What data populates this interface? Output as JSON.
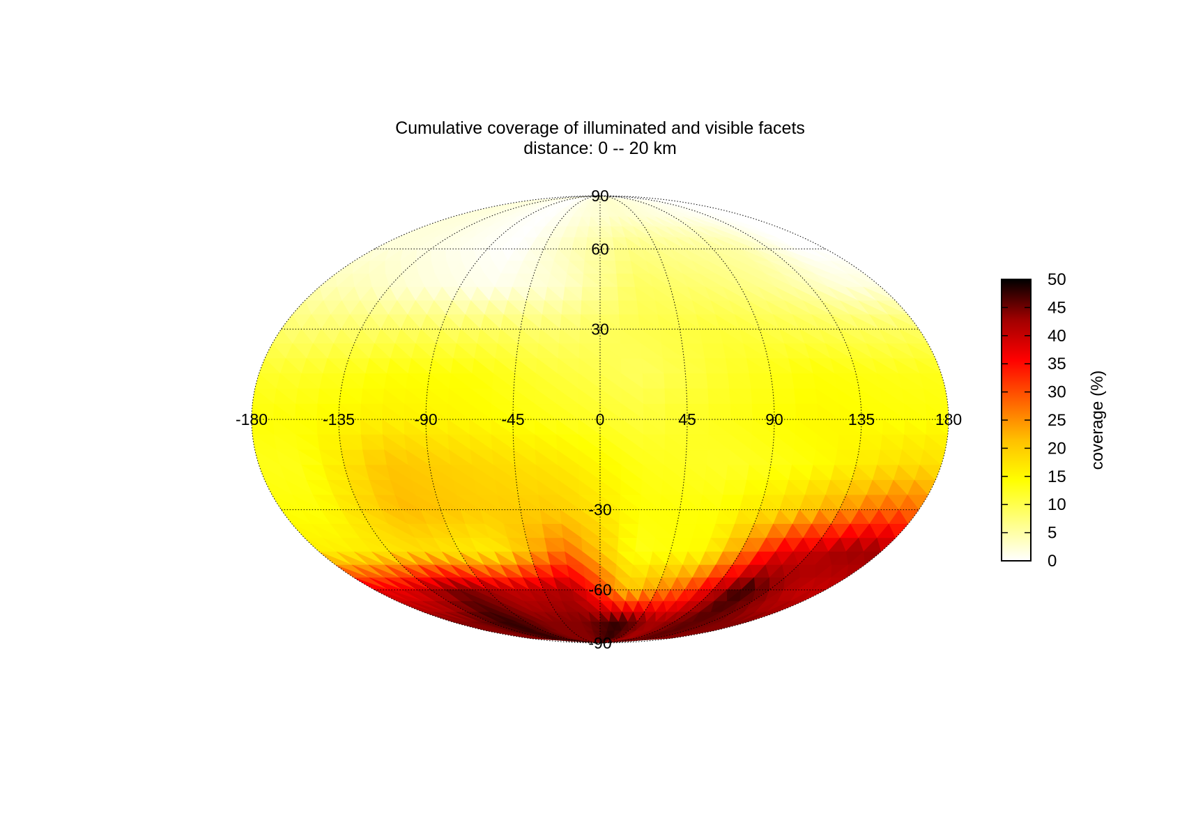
{
  "chart_data": {
    "type": "heatmap",
    "projection": "Mollweide",
    "title": "Cumulative coverage of illuminated and visible facets",
    "subtitle": "distance:  0 -- 20 km",
    "xlabel": "",
    "ylabel": "",
    "longitude_ticks": [
      "-180",
      "-135",
      "-90",
      "-45",
      "0",
      "45",
      "90",
      "135",
      "180"
    ],
    "latitude_ticks": [
      "90",
      "60",
      "30",
      "-30",
      "-60",
      "-90"
    ],
    "lon_range": [
      -180,
      180
    ],
    "lat_range": [
      -90,
      90
    ],
    "grid": true,
    "colorbar": {
      "label": "coverage (%)",
      "range": [
        0,
        50
      ],
      "tick_labels": [
        "0",
        "5",
        "10",
        "15",
        "20",
        "25",
        "30",
        "35",
        "40",
        "45",
        "50"
      ],
      "colors": [
        "#ffffff",
        "#ffff80",
        "#ffff00",
        "#ffc000",
        "#ff6000",
        "#ff0000",
        "#a00000",
        "#000000"
      ]
    },
    "latitude_bands": [
      75,
      60,
      45,
      30,
      15,
      0,
      -15,
      -30,
      -45,
      -60,
      -75
    ],
    "longitude_bins": [
      -157.5,
      -112.5,
      -67.5,
      -22.5,
      22.5,
      67.5,
      112.5,
      157.5
    ],
    "coverage_grid_percent": [
      [
        2,
        1,
        0,
        2,
        3,
        2,
        1,
        0
      ],
      [
        2,
        1,
        0,
        4,
        7,
        6,
        5,
        0
      ],
      [
        4,
        2,
        1,
        3,
        9,
        8,
        6,
        2
      ],
      [
        8,
        9,
        9,
        8,
        10,
        11,
        10,
        9
      ],
      [
        12,
        14,
        14,
        11,
        9,
        12,
        14,
        13
      ],
      [
        14,
        16,
        15,
        13,
        11,
        13,
        15,
        14
      ],
      [
        13,
        21,
        19,
        17,
        13,
        12,
        14,
        18
      ],
      [
        14,
        22,
        20,
        20,
        14,
        14,
        20,
        28
      ],
      [
        16,
        18,
        16,
        28,
        13,
        15,
        36,
        43
      ],
      [
        37,
        45,
        40,
        42,
        20,
        30,
        48,
        40
      ],
      [
        44,
        48,
        44,
        44,
        48,
        42,
        46,
        44
      ]
    ]
  }
}
